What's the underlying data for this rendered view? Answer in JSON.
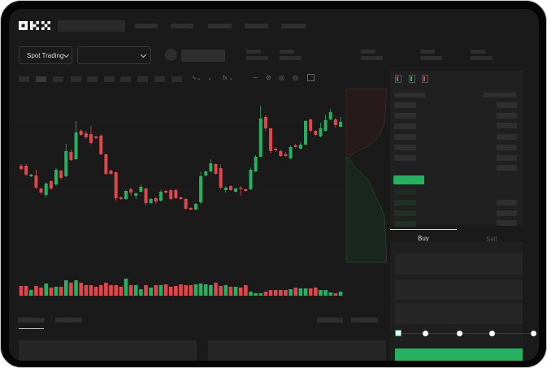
{
  "brand": {
    "logo": "OKX"
  },
  "toolbar": {
    "mode_dropdown": "Spot Trading"
  },
  "trade_panel": {
    "tabs": [
      {
        "label": "Buy",
        "active": true
      },
      {
        "label": "Sell",
        "active": false
      }
    ],
    "slider_percent": 0,
    "slider_stops": 5
  },
  "colors": {
    "up": "#25b15f",
    "down": "#e0474c",
    "background": "#1a1a1a",
    "panel": "#202020"
  },
  "icons": [
    "okx-logo",
    "chevron-down-icon",
    "candles-icon",
    "line-tool-icon",
    "pen-icon",
    "magnet-icon",
    "eye-icon",
    "fullscreen-icon",
    "orderbook-both-icon",
    "orderbook-bids-icon",
    "orderbook-asks-icon"
  ],
  "chart_data": {
    "type": "candlestick",
    "grid": true,
    "candles": [
      [
        67,
        69,
        61,
        63
      ],
      [
        67,
        69,
        54,
        56
      ],
      [
        54,
        57,
        53,
        56
      ],
      [
        55,
        62,
        38,
        40
      ],
      [
        39,
        40,
        32,
        34
      ],
      [
        31,
        46,
        28,
        45
      ],
      [
        48,
        49,
        37,
        39
      ],
      [
        44,
        64,
        42,
        62
      ],
      [
        61,
        62,
        50,
        52
      ],
      [
        54,
        94,
        53,
        85
      ],
      [
        84,
        87,
        73,
        74
      ],
      [
        75,
        122,
        74,
        108
      ],
      [
        110,
        112,
        104,
        105
      ],
      [
        107,
        110,
        100,
        102
      ],
      [
        106,
        116,
        93,
        95
      ],
      [
        103,
        104,
        100,
        101
      ],
      [
        104,
        106,
        80,
        81
      ],
      [
        81,
        82,
        56,
        57
      ],
      [
        61,
        62,
        56,
        57
      ],
      [
        59,
        60,
        23,
        27
      ],
      [
        28,
        29,
        25,
        26
      ],
      [
        26,
        37,
        25,
        36
      ],
      [
        38,
        40,
        30,
        34
      ],
      [
        30,
        34,
        26,
        33
      ],
      [
        35,
        44,
        34,
        41
      ],
      [
        39,
        40,
        18,
        21
      ],
      [
        21,
        27,
        20,
        26
      ],
      [
        27,
        29,
        20,
        23
      ],
      [
        24,
        37,
        23,
        35
      ],
      [
        36,
        37,
        33,
        34
      ],
      [
        37,
        38,
        25,
        26
      ],
      [
        37,
        39,
        26,
        27
      ],
      [
        28,
        29,
        25,
        26
      ],
      [
        26,
        27,
        13,
        14
      ],
      [
        15,
        16,
        12,
        13
      ],
      [
        13,
        21,
        12,
        20
      ],
      [
        22,
        60,
        20,
        54
      ],
      [
        55,
        61,
        54,
        60
      ],
      [
        60,
        75,
        59,
        70
      ],
      [
        69,
        70,
        56,
        57
      ],
      [
        64,
        69,
        38,
        40
      ],
      [
        37,
        42,
        34,
        40
      ],
      [
        42,
        43,
        36,
        37
      ],
      [
        35,
        40,
        34,
        39
      ],
      [
        40,
        42,
        30,
        39
      ],
      [
        38,
        39,
        35,
        36
      ],
      [
        38,
        65,
        37,
        62
      ],
      [
        60,
        80,
        59,
        78
      ],
      [
        78,
        141,
        77,
        125
      ],
      [
        127,
        129,
        110,
        113
      ],
      [
        113,
        114,
        82,
        85
      ],
      [
        88,
        90,
        84,
        86
      ],
      [
        85,
        87,
        78,
        79
      ],
      [
        81,
        84,
        78,
        79
      ],
      [
        76,
        92,
        75,
        90
      ],
      [
        92,
        94,
        89,
        90
      ],
      [
        88,
        96,
        87,
        93
      ],
      [
        93,
        123,
        92,
        122
      ],
      [
        124,
        125,
        108,
        110
      ],
      [
        110,
        111,
        104,
        105
      ],
      [
        103,
        120,
        102,
        113
      ],
      [
        110,
        130,
        109,
        123
      ],
      [
        124,
        137,
        123,
        133
      ],
      [
        124,
        126,
        114,
        117
      ],
      [
        115,
        127,
        114,
        121
      ]
    ],
    "volume": [
      12,
      12,
      7,
      12,
      10,
      15,
      10,
      11,
      11,
      19,
      16,
      19,
      16,
      13,
      13,
      11,
      13,
      16,
      13,
      13,
      11,
      21,
      13,
      13,
      8,
      13,
      10,
      13,
      13,
      14,
      11,
      12,
      14,
      13,
      13,
      14,
      15,
      14,
      13,
      16,
      12,
      13,
      11,
      11,
      10,
      13,
      5,
      3,
      3,
      5,
      7,
      7,
      7,
      7,
      8,
      10,
      9,
      9,
      9,
      10,
      7,
      7,
      4,
      3,
      5
    ]
  }
}
